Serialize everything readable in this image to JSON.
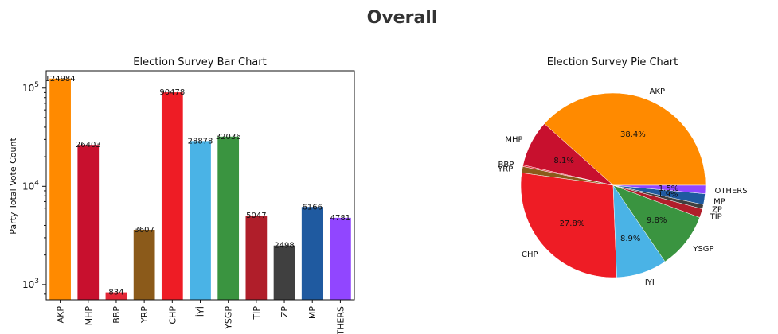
{
  "page": {
    "title": "Overall"
  },
  "chart_data": [
    {
      "type": "bar",
      "title": "Election Survey Bar Chart",
      "xlabel": "",
      "ylabel": "Party Total Vote Count",
      "yscale": "log",
      "ylim": [
        700,
        150000
      ],
      "yticks": [
        {
          "value": 1000,
          "label": "10",
          "exp": "3"
        },
        {
          "value": 10000,
          "label": "10",
          "exp": "4"
        },
        {
          "value": 100000,
          "label": "10",
          "exp": "5"
        }
      ],
      "categories": [
        "AKP",
        "MHP",
        "BBP",
        "YRP",
        "CHP",
        "İYİ",
        "YSGP",
        "TİP",
        "ZP",
        "MP",
        "OTHERS"
      ],
      "values": [
        124984,
        26403,
        834,
        3607,
        90478,
        28878,
        32036,
        5047,
        2498,
        6166,
        4781
      ],
      "colors": [
        "#ff8a00",
        "#c8102e",
        "#e32636",
        "#8b5a1a",
        "#ee1c25",
        "#4ab3e6",
        "#3a9440",
        "#b01e2a",
        "#404040",
        "#1f5aa0",
        "#9146ff"
      ]
    },
    {
      "type": "pie",
      "title": "Election Survey Pie Chart",
      "labels": [
        "AKP",
        "MHP",
        "BBP",
        "YRP",
        "CHP",
        "İYİ",
        "YSGP",
        "TİP",
        "ZP",
        "MP",
        "OTHERS"
      ],
      "values": [
        124984,
        26403,
        834,
        3607,
        90478,
        28878,
        32036,
        5047,
        2498,
        6166,
        4781
      ],
      "pct_labels": [
        "38.4%",
        "8.1%",
        "",
        "",
        "27.8%",
        "8.9%",
        "9.8%",
        "",
        "",
        "1.9%",
        "1.5%"
      ],
      "colors": [
        "#ff8a00",
        "#c8102e",
        "#e32636",
        "#8b5a1a",
        "#ee1c25",
        "#4ab3e6",
        "#3a9440",
        "#b01e2a",
        "#404040",
        "#1f5aa0",
        "#9146ff"
      ]
    }
  ]
}
